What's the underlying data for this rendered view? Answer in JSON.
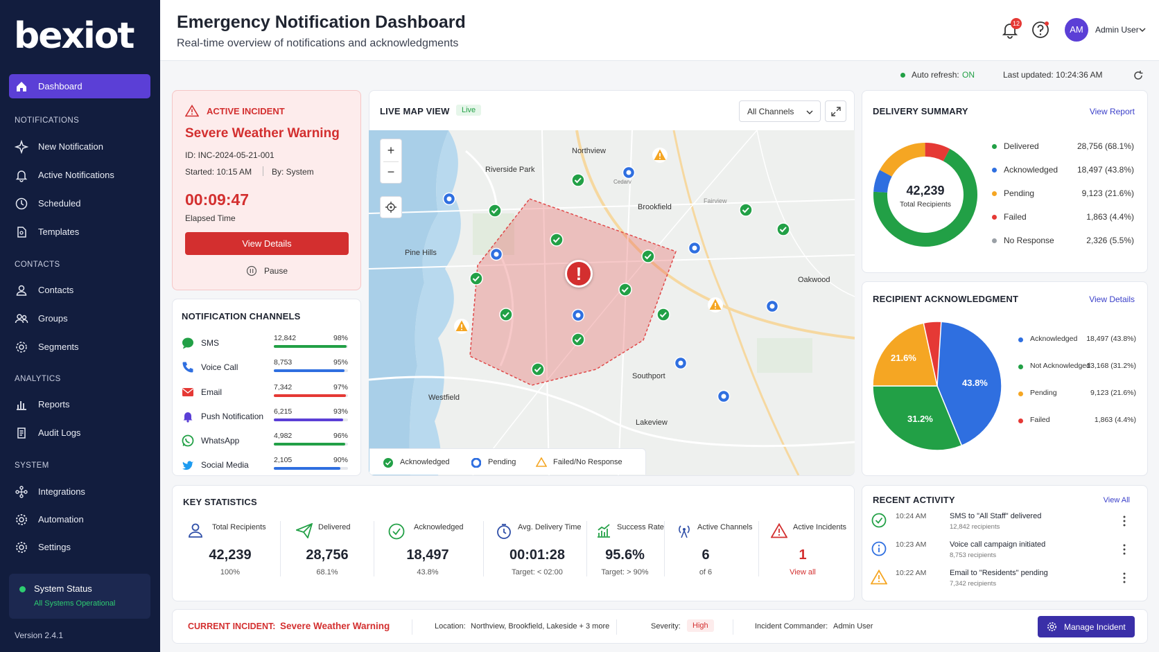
{
  "brand": "bexiot",
  "sidebar": {
    "dashboard": "Dashboard",
    "sections": {
      "notifications": "NOTIFICATIONS",
      "contacts": "CONTACTS",
      "analytics": "ANALYTICS",
      "system": "SYSTEM"
    },
    "items": {
      "new_notification": "New Notification",
      "active_notifications": "Active Notifications",
      "scheduled": "Scheduled",
      "templates": "Templates",
      "contacts": "Contacts",
      "groups": "Groups",
      "segments": "Segments",
      "reports": "Reports",
      "audit_logs": "Audit Logs",
      "integrations": "Integrations",
      "automation": "Automation",
      "settings": "Settings"
    },
    "status_title": "System Status",
    "status_text": "All Systems Operational",
    "version": "Version 2.4.1"
  },
  "header": {
    "title": "Emergency Notification Dashboard",
    "subtitle": "Real-time overview of notifications and acknowledgments",
    "notif_count": "12",
    "avatar": "AM",
    "user": "Admin User"
  },
  "refresh": {
    "label": "Auto refresh:",
    "state": "ON",
    "last_updated": "Last updated: 10:24:36 AM"
  },
  "incident": {
    "tag": "ACTIVE INCIDENT",
    "title": "Severe Weather Warning",
    "id": "ID: INC-2024-05-21-001",
    "started": "Started: 10:15 AM",
    "by": "By: System",
    "elapsed": "00:09:47",
    "elapsed_label": "Elapsed Time",
    "view_details": "View Details",
    "pause": "Pause"
  },
  "channels": {
    "title": "NOTIFICATION CHANNELS",
    "rows": [
      {
        "name": "SMS",
        "count": "12,842",
        "pct": "98%",
        "fill": 0.98,
        "color": "#22a046"
      },
      {
        "name": "Voice Call",
        "count": "8,753",
        "pct": "95%",
        "fill": 0.95,
        "color": "#2f6fe0"
      },
      {
        "name": "Email",
        "count": "7,342",
        "pct": "97%",
        "fill": 0.97,
        "color": "#e53935"
      },
      {
        "name": "Push Notification",
        "count": "6,215",
        "pct": "93%",
        "fill": 0.93,
        "color": "#5b3fd6"
      },
      {
        "name": "WhatsApp",
        "count": "4,982",
        "pct": "96%",
        "fill": 0.96,
        "color": "#22a046"
      },
      {
        "name": "Social Media",
        "count": "2,105",
        "pct": "90%",
        "fill": 0.9,
        "color": "#2f6fe0"
      }
    ]
  },
  "map": {
    "title": "LIVE MAP VIEW",
    "live": "Live",
    "filter": "All Channels",
    "places": {
      "northview": "Northview",
      "riverside": "Riverside Park",
      "brookfield": "Brookfield",
      "fairview": "Fairview",
      "pinehills": "Pine Hills",
      "oakwood": "Oakwood",
      "southport": "Southport",
      "westfield": "Westfield",
      "lakeview": "Lakeview",
      "cedar": "Cedarv"
    },
    "legend": {
      "ack": "Acknowledged",
      "pending": "Pending",
      "failed": "Failed/No Response"
    }
  },
  "delivery": {
    "title": "DELIVERY SUMMARY",
    "link": "View Report",
    "total": "42,239",
    "total_label": "Total Recipients",
    "rows": [
      {
        "name": "Delivered",
        "value": "28,756 (68.1%)",
        "color": "#22a046"
      },
      {
        "name": "Acknowledged",
        "value": "18,497 (43.8%)",
        "color": "#2f6fe0"
      },
      {
        "name": "Pending",
        "value": "9,123 (21.6%)",
        "color": "#f5a623"
      },
      {
        "name": "Failed",
        "value": "1,863  (4.4%)",
        "color": "#e53935"
      },
      {
        "name": "No Response",
        "value": "2,326  (5.5%)",
        "color": "#9aa0a6"
      }
    ]
  },
  "ack": {
    "title": "RECIPIENT ACKNOWLEDGMENT",
    "link": "View Details",
    "rows": [
      {
        "name": "Acknowledged",
        "value": "18,497 (43.8%)",
        "color": "#2f6fe0"
      },
      {
        "name": "Not Acknowledged",
        "value": "13,168 (31.2%)",
        "color": "#22a046"
      },
      {
        "name": "Pending",
        "value": "9,123 (21.6%)",
        "color": "#f5a623"
      },
      {
        "name": "Failed",
        "value": "1,863 (4.4%)",
        "color": "#e53935"
      }
    ],
    "labels": {
      "blue": "43.8%",
      "green": "31.2%",
      "orange": "21.6%"
    }
  },
  "stats": {
    "title": "KEY STATISTICS",
    "items": [
      {
        "label": "Total Recipients",
        "value": "42,239",
        "sub": "100%"
      },
      {
        "label": "Delivered",
        "value": "28,756",
        "sub": "68.1%"
      },
      {
        "label": "Acknowledged",
        "value": "18,497",
        "sub": "43.8%"
      },
      {
        "label": "Avg. Delivery Time",
        "value": "00:01:28",
        "sub": "Target: < 02:00"
      },
      {
        "label": "Success Rate",
        "value": "95.6%",
        "sub": "Target: > 90%"
      },
      {
        "label": "Active Channels",
        "value": "6",
        "sub": "of 6"
      },
      {
        "label": "Active Incidents",
        "value": "1",
        "sub": "View all"
      }
    ]
  },
  "activity": {
    "title": "RECENT ACTIVITY",
    "link": "View All",
    "rows": [
      {
        "time": "10:24 AM",
        "text": "SMS to \"All Staff\" delivered",
        "sub": "12,842 recipients"
      },
      {
        "time": "10:23 AM",
        "text": "Voice call campaign initiated",
        "sub": "8,753 recipients"
      },
      {
        "time": "10:22 AM",
        "text": "Email to \"Residents\" pending",
        "sub": "7,342 recipients"
      }
    ]
  },
  "footer": {
    "current_label": "CURRENT INCIDENT:",
    "current_value": "Severe Weather Warning",
    "location_label": "Location:",
    "location": "Northview, Brookfield, Lakeside + 3 more",
    "severity_label": "Severity:",
    "severity": "High",
    "commander_label": "Incident Commander:",
    "commander": "Admin User",
    "manage": "Manage Incident"
  }
}
